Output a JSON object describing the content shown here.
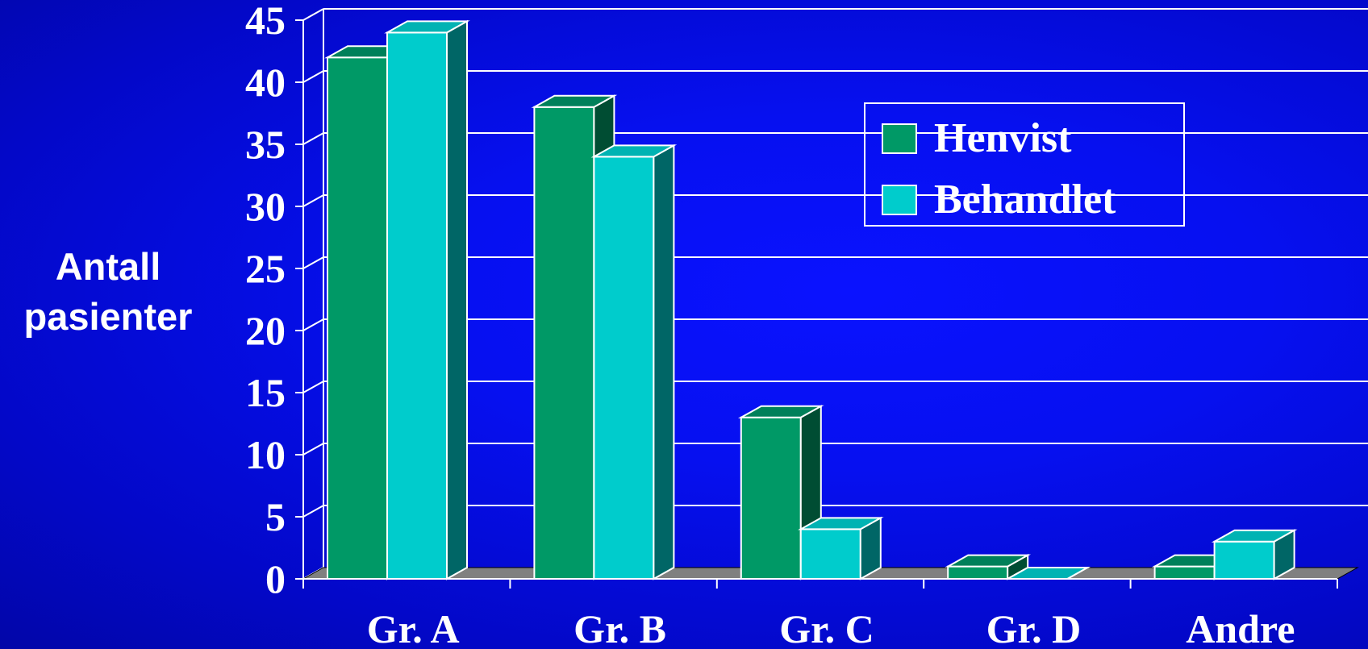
{
  "chart_data": {
    "type": "bar",
    "style": "3d-clustered",
    "categories": [
      "Gr. A",
      "Gr. B",
      "Gr. C",
      "Gr. D",
      "Andre"
    ],
    "series": [
      {
        "name": "Henvist",
        "values": [
          42,
          38,
          13,
          1,
          1
        ],
        "color": "#009966"
      },
      {
        "name": "Behandlet",
        "values": [
          44,
          34,
          4,
          0,
          3
        ],
        "color": "#00cccc"
      }
    ],
    "ylabel": [
      "Antall",
      "pasienter"
    ],
    "ylim": [
      0,
      45
    ],
    "yticks": [
      "0",
      "5",
      "10",
      "15",
      "20",
      "25",
      "30",
      "35",
      "40",
      "45"
    ],
    "grid": true,
    "legend_position": "top-right",
    "colors": {
      "background": "#0610f0",
      "gridline": "#ffffff",
      "floor": "#808080",
      "henvist_side": "#004d33",
      "behandlet_side": "#006666"
    }
  }
}
